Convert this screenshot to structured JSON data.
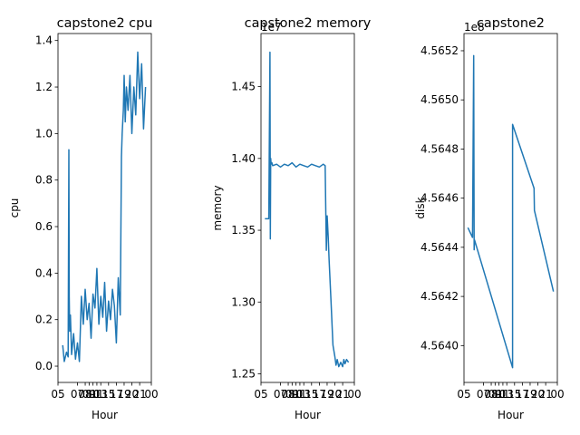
{
  "chart_data": [
    {
      "type": "line",
      "title": "capstone2 cpu",
      "xlabel": "Hour",
      "ylabel": "cpu",
      "offset_label": "",
      "series_color": "#1f77b4",
      "grid": false,
      "xlim": [
        0,
        24
      ],
      "ylim": [
        -0.07,
        1.43
      ],
      "x_ticks": [
        0,
        5,
        7,
        8,
        9,
        10,
        11,
        13,
        15,
        17,
        19,
        21,
        24
      ],
      "x_tick_labels": [
        "05",
        "07",
        "08",
        "09",
        "10",
        "11",
        "13",
        "15",
        "17",
        "19",
        "20",
        "21",
        "00"
      ],
      "y_ticks": [
        0.0,
        0.2,
        0.4,
        0.6,
        0.8,
        1.0,
        1.2,
        1.4
      ],
      "y_tick_labels": [
        "0.0",
        "0.2",
        "0.4",
        "0.6",
        "0.8",
        "1.0",
        "1.2",
        "1.4"
      ],
      "series": [
        {
          "x": [
            1.2,
            1.6,
            2.2,
            2.6,
            2.8,
            2.9,
            3.0,
            3.2,
            3.5,
            4.0,
            4.5,
            5.0,
            5.5,
            6.0,
            6.5,
            7.0,
            7.5,
            8.0,
            8.5,
            9.0,
            9.5,
            10.0,
            10.5,
            11.0,
            11.5,
            12.0,
            12.5,
            13.0,
            13.5,
            14.0,
            14.5,
            15.0,
            15.5,
            16.0,
            16.3,
            16.5,
            16.8,
            17.0,
            17.3,
            17.6,
            18.0,
            18.5,
            19.0,
            19.5,
            20.0,
            20.5,
            21.0,
            21.5,
            22.0,
            22.5
          ],
          "y": [
            0.09,
            0.02,
            0.06,
            0.04,
            0.93,
            0.3,
            0.15,
            0.22,
            0.05,
            0.14,
            0.03,
            0.1,
            0.02,
            0.3,
            0.18,
            0.33,
            0.2,
            0.27,
            0.12,
            0.31,
            0.25,
            0.42,
            0.18,
            0.3,
            0.21,
            0.36,
            0.15,
            0.28,
            0.2,
            0.33,
            0.26,
            0.1,
            0.38,
            0.22,
            0.9,
            1.0,
            1.1,
            1.25,
            1.05,
            1.2,
            1.1,
            1.25,
            1.0,
            1.2,
            1.08,
            1.35,
            1.15,
            1.3,
            1.02,
            1.2
          ]
        }
      ]
    },
    {
      "type": "line",
      "title": "capstone2 memory",
      "xlabel": "Hour",
      "ylabel": "memory",
      "offset_label": "1e7",
      "series_color": "#1f77b4",
      "grid": false,
      "xlim": [
        0,
        24
      ],
      "ylim": [
        1.244,
        1.487
      ],
      "x_ticks": [
        0,
        5,
        7,
        8,
        9,
        10,
        11,
        13,
        15,
        17,
        19,
        21,
        24
      ],
      "x_tick_labels": [
        "05",
        "07",
        "08",
        "09",
        "10",
        "11",
        "13",
        "15",
        "17",
        "19",
        "20",
        "21",
        "00"
      ],
      "y_ticks": [
        1.25,
        1.3,
        1.35,
        1.4,
        1.45
      ],
      "y_tick_labels": [
        "1.25",
        "1.30",
        "1.35",
        "1.40",
        "1.45"
      ],
      "series": [
        {
          "x": [
            1.0,
            2.0,
            2.3,
            2.4,
            2.5,
            2.6,
            2.8,
            3.0,
            4.0,
            5.0,
            6.0,
            7.0,
            8.0,
            9.0,
            10.0,
            11.0,
            12.0,
            13.0,
            14.0,
            15.0,
            16.0,
            16.5,
            16.8,
            17.0,
            17.3,
            17.5,
            18.0,
            18.5,
            19.0,
            19.3,
            19.6,
            20.0,
            20.5,
            21.0,
            21.3,
            21.6,
            22.0,
            22.5
          ],
          "y": [
            1.358,
            1.358,
            1.474,
            1.344,
            1.4,
            1.396,
            1.397,
            1.395,
            1.396,
            1.394,
            1.396,
            1.395,
            1.397,
            1.394,
            1.396,
            1.395,
            1.394,
            1.396,
            1.395,
            1.394,
            1.396,
            1.395,
            1.336,
            1.36,
            1.345,
            1.33,
            1.3,
            1.27,
            1.262,
            1.256,
            1.26,
            1.255,
            1.258,
            1.255,
            1.26,
            1.257,
            1.26,
            1.258
          ]
        }
      ]
    },
    {
      "type": "line",
      "title": "capstone2",
      "xlabel": "Hour",
      "ylabel": "disk",
      "offset_label": "1e8",
      "series_color": "#1f77b4",
      "grid": false,
      "xlim": [
        0,
        24
      ],
      "ylim": [
        4.56385,
        4.56527
      ],
      "x_ticks": [
        0,
        5,
        7,
        8,
        9,
        10,
        11,
        13,
        15,
        17,
        19,
        21,
        24
      ],
      "x_tick_labels": [
        "05",
        "07",
        "08",
        "09",
        "10",
        "11",
        "13",
        "15",
        "17",
        "19",
        "20",
        "21",
        "00"
      ],
      "y_ticks": [
        4.564,
        4.5642,
        4.5644,
        4.5646,
        4.5648,
        4.565,
        4.5652
      ],
      "y_tick_labels": [
        "4.5640",
        "4.5642",
        "4.5644",
        "4.5646",
        "4.5648",
        "4.5650",
        "4.5652"
      ],
      "series": [
        {
          "x": [
            1.0,
            2.2,
            2.5,
            2.6,
            2.7,
            12.5,
            12.5,
            18.0,
            18.1,
            23.0
          ],
          "y": [
            4.56448,
            4.56444,
            4.56518,
            4.56439,
            4.56443,
            4.56391,
            4.5649,
            4.56464,
            4.56455,
            4.56422
          ]
        }
      ]
    }
  ]
}
